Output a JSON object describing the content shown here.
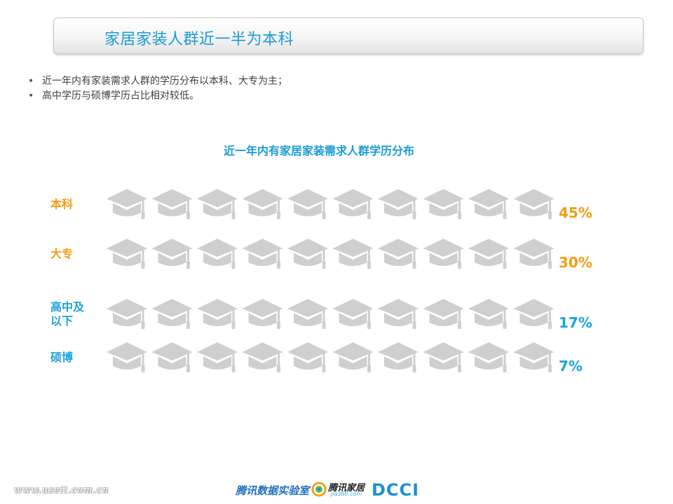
{
  "header": {
    "title": "家居家装人群近一半为本科"
  },
  "bullets": [
    "近一年内有家装需求人群的学历分布以本科、大专为主；",
    "高中学历与硕博学历占比相对较低。"
  ],
  "colors": {
    "orange": "#f39c12",
    "blue": "#1aa3e0",
    "gray": "#cfcfcf",
    "title_blue": "#1a9bd7"
  },
  "icon": "graduation-cap-icon",
  "chart_data": {
    "type": "bar",
    "title": "近一年内有家居家装需求人群学历分布",
    "unit": "%",
    "icons_per_row": 10,
    "categories": [
      "本科",
      "大专",
      "高中及以下",
      "硕博"
    ],
    "label_lines": [
      [
        "本科"
      ],
      [
        "大专"
      ],
      [
        "高中及",
        "以下"
      ],
      [
        "硕博"
      ]
    ],
    "values": [
      45,
      30,
      17,
      7
    ],
    "value_labels": [
      "45%",
      "30%",
      "17%",
      "7%"
    ],
    "colors": [
      "#f39c12",
      "#f39c12",
      "#1aa3e0",
      "#1aa3e0"
    ]
  },
  "footer": {
    "url": "www.useit.com.cn",
    "lab": "腾讯数据实验室",
    "home": "腾讯家居",
    "home_sub": "jia360.com",
    "dcci": "DCCI"
  }
}
